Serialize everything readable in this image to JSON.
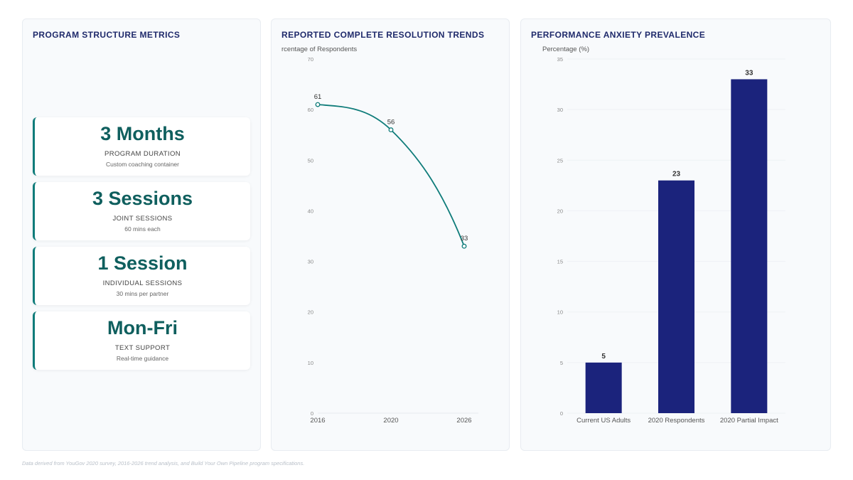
{
  "metrics": {
    "title": "PROGRAM STRUCTURE METRICS",
    "cards": [
      {
        "value": "3 Months",
        "label": "PROGRAM DURATION",
        "sub": "Custom coaching container"
      },
      {
        "value": "3 Sessions",
        "label": "JOINT SESSIONS",
        "sub": "60 mins each"
      },
      {
        "value": "1 Session",
        "label": "INDIVIDUAL SESSIONS",
        "sub": "30 mins per partner"
      },
      {
        "value": "Mon-Fri",
        "label": "TEXT SUPPORT",
        "sub": "Real-time guidance"
      }
    ]
  },
  "chart_data": [
    {
      "type": "line",
      "title": "REPORTED COMPLETE RESOLUTION TRENDS",
      "ylabel": "rcentage of Respondents",
      "xlabel": "",
      "categories": [
        "2016",
        "2020",
        "2026"
      ],
      "values": [
        61,
        56,
        33
      ],
      "data_labels": [
        "61",
        "56",
        "33"
      ],
      "ylim": [
        0,
        70
      ],
      "yticks": [
        "0",
        "10",
        "20",
        "30",
        "40",
        "50",
        "60",
        "70"
      ],
      "grid": false,
      "line_color": "#0f7c7a"
    },
    {
      "type": "bar",
      "title": "PERFORMANCE ANXIETY PREVALENCE",
      "ylabel": "Percentage (%)",
      "xlabel": "",
      "categories": [
        "Current US Adults",
        "2020 Respondents",
        "2020 Partial Impact"
      ],
      "values": [
        5,
        23,
        33
      ],
      "data_labels": [
        "5",
        "23",
        "33"
      ],
      "ylim": [
        0,
        35
      ],
      "yticks": [
        "0",
        "5",
        "10",
        "15",
        "20",
        "25",
        "30",
        "35"
      ],
      "grid": true,
      "bar_color": "#1b237c"
    }
  ],
  "footnote": "Data derived from YouGov 2020 survey, 2016-2026 trend analysis, and Build Your Own Pipeline program specifications."
}
